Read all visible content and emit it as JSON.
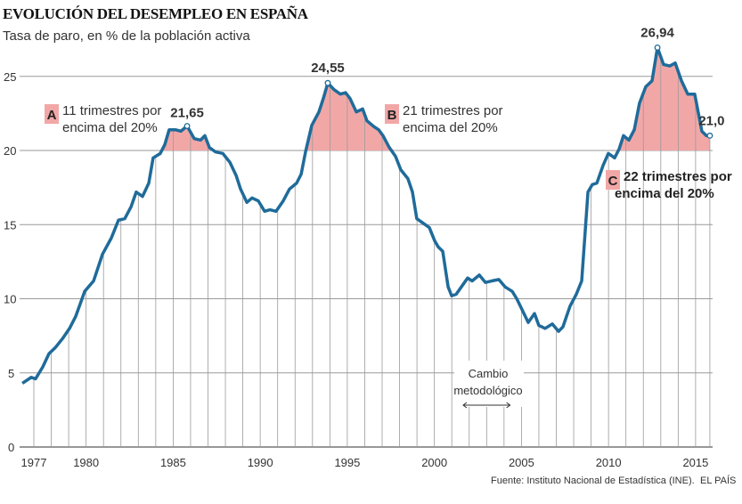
{
  "title": "EVOLUCIÓN DEL DESEMPLEO EN ESPAÑA",
  "subtitle": "Tasa de paro, en % de la población activa",
  "source": "Fuente: Instituto Nacional de Estadística (INE).",
  "brand": "EL PAÍS",
  "chart_data": {
    "type": "line",
    "title": "EVOLUCIÓN DEL DESEMPLEO EN ESPAÑA",
    "ylabel": "Tasa de paro, en % de la población activa",
    "xlim": [
      1976.3,
      2015.9
    ],
    "ylim": [
      0,
      27
    ],
    "yticks": [
      0,
      5,
      10,
      15,
      20,
      25
    ],
    "ytick_labels": [
      "0",
      "5",
      "10",
      "15",
      "20",
      "25"
    ],
    "xticks": [
      1977,
      1980,
      1985,
      1990,
      1995,
      2000,
      2005,
      2010,
      2015
    ],
    "xtick_labels": [
      "1977",
      "1980",
      "1985",
      "1990",
      "1995",
      "2000",
      "2005",
      "2010",
      "2015"
    ],
    "grid": true,
    "threshold": 20,
    "colors": {
      "line": "#1f6b9a",
      "fill": "#f2a7a7",
      "grid": "#9a9a9a"
    },
    "points": [
      [
        1976.34,
        4.3
      ],
      [
        1976.85,
        4.7
      ],
      [
        1977.1,
        4.6
      ],
      [
        1977.51,
        5.4
      ],
      [
        1977.87,
        6.3
      ],
      [
        1978.23,
        6.7
      ],
      [
        1978.64,
        7.3
      ],
      [
        1979.05,
        8.0
      ],
      [
        1979.4,
        8.8
      ],
      [
        1979.92,
        10.5
      ],
      [
        1980.43,
        11.2
      ],
      [
        1980.94,
        13.0
      ],
      [
        1981.45,
        14.1
      ],
      [
        1981.86,
        15.3
      ],
      [
        1982.22,
        15.4
      ],
      [
        1982.58,
        16.2
      ],
      [
        1982.88,
        17.2
      ],
      [
        1983.24,
        16.9
      ],
      [
        1983.6,
        17.8
      ],
      [
        1983.85,
        19.5
      ],
      [
        1984.26,
        19.8
      ],
      [
        1984.52,
        20.4
      ],
      [
        1984.77,
        21.4
      ],
      [
        1985.13,
        21.4
      ],
      [
        1985.44,
        21.3
      ],
      [
        1985.8,
        21.65
      ],
      [
        1986.21,
        20.8
      ],
      [
        1986.57,
        20.7
      ],
      [
        1986.82,
        21.0
      ],
      [
        1987.08,
        20.2
      ],
      [
        1987.44,
        19.9
      ],
      [
        1987.85,
        19.8
      ],
      [
        1988.26,
        19.2
      ],
      [
        1988.62,
        18.3
      ],
      [
        1988.87,
        17.4
      ],
      [
        1989.23,
        16.5
      ],
      [
        1989.53,
        16.8
      ],
      [
        1989.89,
        16.6
      ],
      [
        1990.25,
        15.9
      ],
      [
        1990.56,
        16.0
      ],
      [
        1990.91,
        15.9
      ],
      [
        1991.32,
        16.6
      ],
      [
        1991.68,
        17.4
      ],
      [
        1992.09,
        17.8
      ],
      [
        1992.35,
        18.4
      ],
      [
        1992.6,
        19.9
      ],
      [
        1992.96,
        21.7
      ],
      [
        1993.37,
        22.6
      ],
      [
        1993.62,
        23.5
      ],
      [
        1993.88,
        24.55
      ],
      [
        1994.24,
        24.1
      ],
      [
        1994.6,
        23.8
      ],
      [
        1994.9,
        23.9
      ],
      [
        1995.16,
        23.5
      ],
      [
        1995.52,
        22.6
      ],
      [
        1995.88,
        22.8
      ],
      [
        1996.13,
        22.0
      ],
      [
        1996.54,
        21.6
      ],
      [
        1996.8,
        21.4
      ],
      [
        1997.05,
        21.0
      ],
      [
        1997.41,
        20.2
      ],
      [
        1997.77,
        19.6
      ],
      [
        1998.07,
        18.7
      ],
      [
        1998.48,
        18.1
      ],
      [
        1998.74,
        17.2
      ],
      [
        1998.99,
        15.4
      ],
      [
        1999.35,
        15.1
      ],
      [
        1999.71,
        14.8
      ],
      [
        2000.02,
        13.9
      ],
      [
        2000.22,
        13.5
      ],
      [
        2000.48,
        13.2
      ],
      [
        2000.79,
        10.8
      ],
      [
        2000.99,
        10.2
      ],
      [
        2001.25,
        10.3
      ],
      [
        2001.55,
        10.8
      ],
      [
        2001.91,
        11.4
      ],
      [
        2002.17,
        11.2
      ],
      [
        2002.58,
        11.6
      ],
      [
        2002.93,
        11.1
      ],
      [
        2003.29,
        11.2
      ],
      [
        2003.7,
        11.3
      ],
      [
        2004.06,
        10.8
      ],
      [
        2004.47,
        10.5
      ],
      [
        2004.73,
        10.0
      ],
      [
        2004.98,
        9.4
      ],
      [
        2005.39,
        8.4
      ],
      [
        2005.75,
        9.0
      ],
      [
        2006.0,
        8.2
      ],
      [
        2006.36,
        8.0
      ],
      [
        2006.77,
        8.3
      ],
      [
        2007.13,
        7.8
      ],
      [
        2007.38,
        8.1
      ],
      [
        2007.79,
        9.5
      ],
      [
        2008.15,
        10.3
      ],
      [
        2008.46,
        11.2
      ],
      [
        2008.82,
        17.2
      ],
      [
        2009.07,
        17.7
      ],
      [
        2009.33,
        17.8
      ],
      [
        2009.69,
        19.0
      ],
      [
        2009.99,
        19.8
      ],
      [
        2010.35,
        19.5
      ],
      [
        2010.61,
        20.1
      ],
      [
        2010.86,
        21.0
      ],
      [
        2011.17,
        20.7
      ],
      [
        2011.48,
        21.4
      ],
      [
        2011.78,
        23.2
      ],
      [
        2012.14,
        24.3
      ],
      [
        2012.5,
        24.7
      ],
      [
        2012.81,
        26.94
      ],
      [
        2013.16,
        25.8
      ],
      [
        2013.52,
        25.7
      ],
      [
        2013.83,
        25.9
      ],
      [
        2014.19,
        24.7
      ],
      [
        2014.55,
        23.8
      ],
      [
        2014.95,
        23.8
      ],
      [
        2015.36,
        21.3
      ],
      [
        2015.62,
        21.0
      ],
      [
        2015.82,
        21.0
      ]
    ],
    "peaks": [
      {
        "label": "21,65",
        "x": 1985.8,
        "y": 21.65
      },
      {
        "label": "24,55",
        "x": 1993.88,
        "y": 24.55
      },
      {
        "label": "26,94",
        "x": 2012.81,
        "y": 26.94
      },
      {
        "label": "21,0",
        "x": 2015.82,
        "y": 21.0
      }
    ],
    "annotations": [
      {
        "letter": "A",
        "lines": [
          "11 trimestres por",
          "encima del 20%"
        ],
        "bold": false
      },
      {
        "letter": "B",
        "lines": [
          "21 trimestres por",
          "encima del 20%"
        ],
        "bold": false
      },
      {
        "letter": "C",
        "lines": [
          "22 trimestres por",
          "encima del 20%"
        ],
        "bold": true
      }
    ],
    "method_change": {
      "lines": [
        "Cambio",
        "metodológico"
      ],
      "from": 2001.5,
      "to": 2004.5
    }
  }
}
